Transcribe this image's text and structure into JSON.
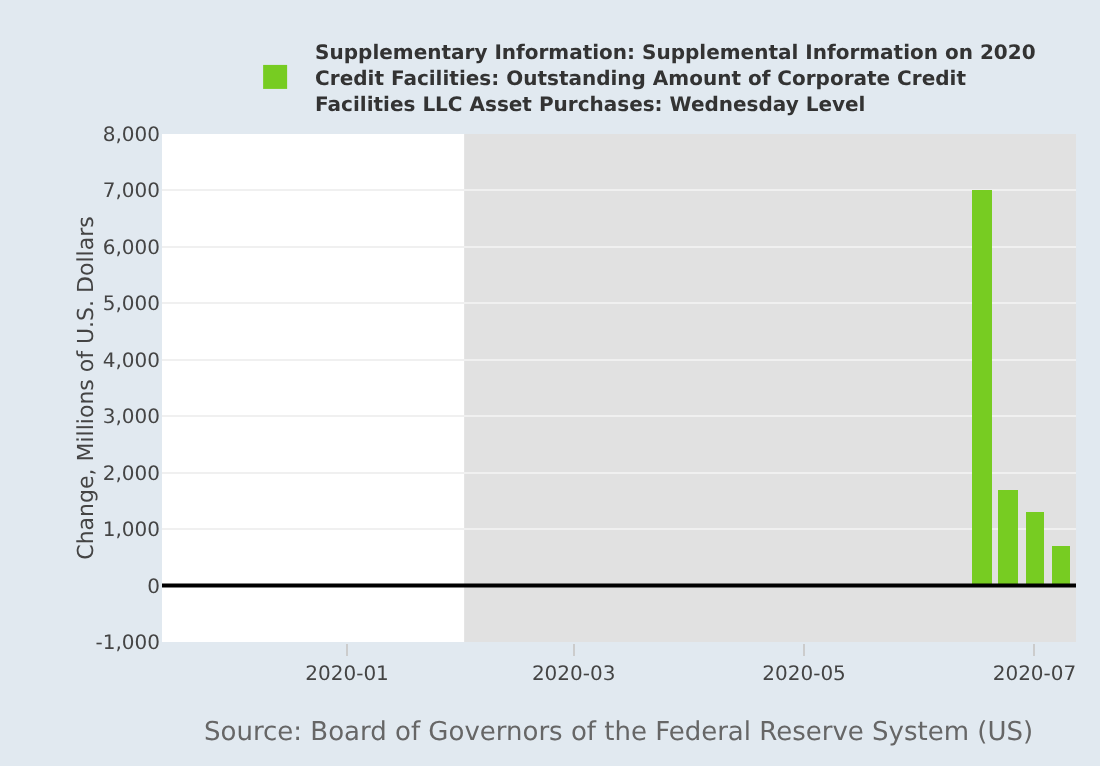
{
  "chart_data": {
    "type": "bar",
    "x": [
      "2020-06-17",
      "2020-06-24",
      "2020-07-01",
      "2020-07-08"
    ],
    "series": [
      {
        "name": "Supplementary Information: Supplemental Information on 2020 Credit Facilities: Outstanding Amount of Corporate Credit Facilities LLC Asset Purchases: Wednesday Level",
        "color": "#77cc22",
        "values": [
          7000,
          1700,
          1300,
          700
        ]
      }
    ],
    "ylabel": "Change, Millions of U.S. Dollars",
    "ylim": [
      -1000,
      8000
    ],
    "yticks": [
      {
        "value": -1000,
        "label": "-1,000"
      },
      0,
      {
        "value": 1000,
        "label": "1,000"
      },
      {
        "value": 2000,
        "label": "2,000"
      },
      {
        "value": 3000,
        "label": "3,000"
      },
      {
        "value": 4000,
        "label": "4,000"
      },
      {
        "value": 5000,
        "label": "5,000"
      },
      {
        "value": 6000,
        "label": "6,000"
      },
      {
        "value": 7000,
        "label": "7,000"
      },
      {
        "value": 8000,
        "label": "8,000"
      }
    ],
    "xlim": [
      "2019-11-13",
      "2020-07-12"
    ],
    "xticks": [
      {
        "value": "2020-01-01",
        "label": "2020-01"
      },
      {
        "value": "2020-03-01",
        "label": "2020-03"
      },
      {
        "value": "2020-05-01",
        "label": "2020-05"
      },
      {
        "value": "2020-07-01",
        "label": "2020-07"
      }
    ],
    "bands": [
      {
        "axis": "x",
        "from": "2020-02-01",
        "to": "2020-07-12",
        "color": "#e1e1e1"
      }
    ],
    "ref_lines": [
      {
        "axis": "y",
        "value": 0,
        "color": "#000000"
      }
    ],
    "annotations": [
      "Source: Board of Governors of the Federal Reserve System (US)"
    ],
    "grid": "y",
    "legend": "top"
  }
}
